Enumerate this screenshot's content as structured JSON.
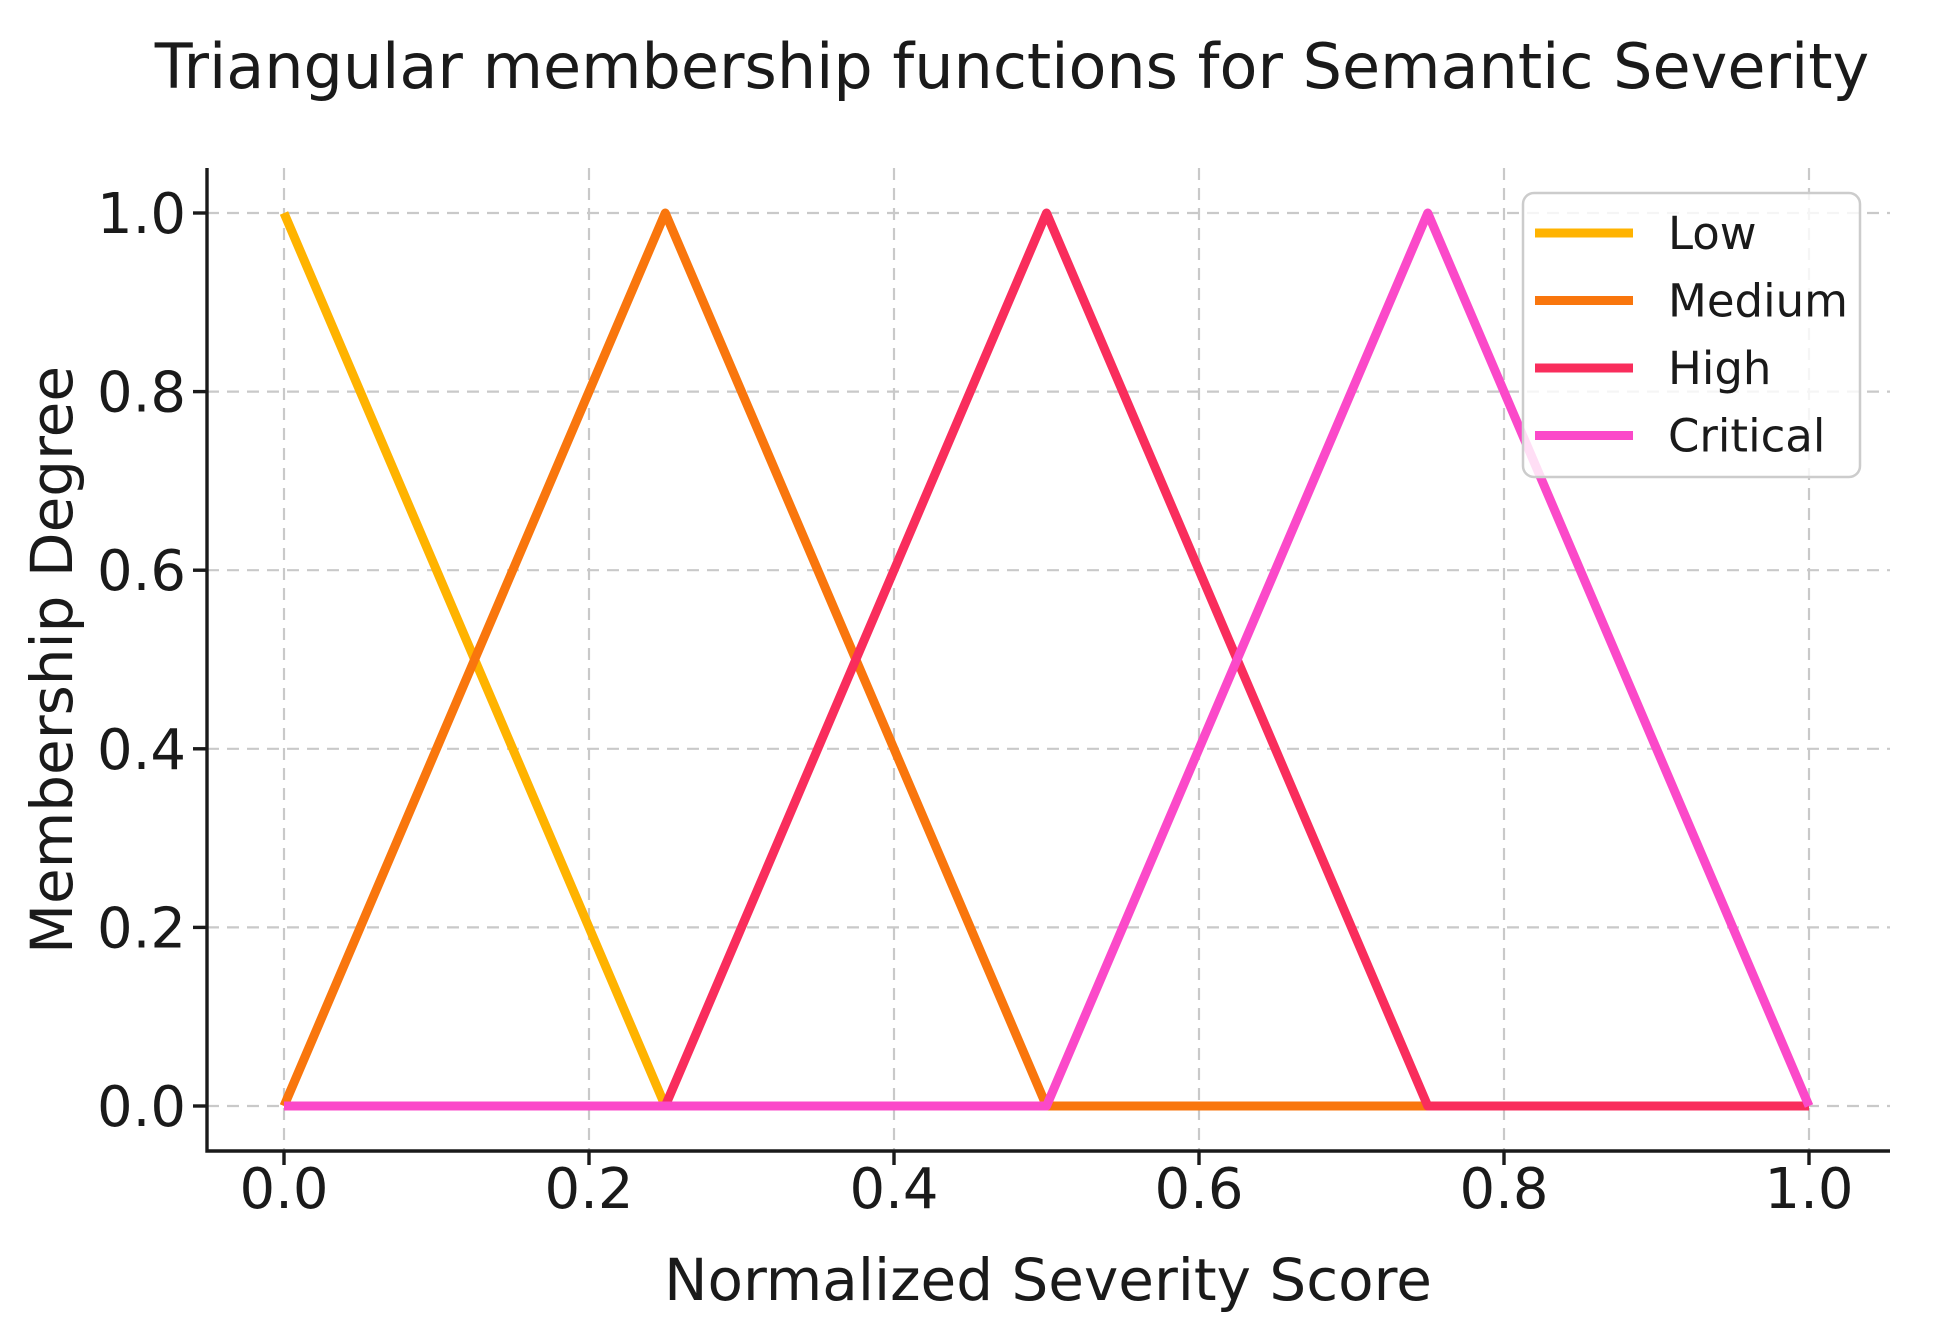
{
  "figure": {
    "background": "#ffffff",
    "text_color": "#1a1a1a",
    "grid_color": "#c9c9c9",
    "spine_color": "#1a1a1a",
    "legend_border_color": "#cccccc"
  },
  "chart_data": {
    "type": "line",
    "title": "Triangular membership functions for Semantic Severity",
    "xlabel": "Normalized Severity Score",
    "ylabel": "Membership Degree",
    "xlim": [
      -0.05,
      1.05
    ],
    "ylim": [
      -0.05,
      1.05
    ],
    "xticks": [
      0.0,
      0.2,
      0.4,
      0.6,
      0.8,
      1.0
    ],
    "yticks": [
      0.0,
      0.2,
      0.4,
      0.6,
      0.8,
      1.0
    ],
    "xtick_labels": [
      "0.0",
      "0.2",
      "0.4",
      "0.6",
      "0.8",
      "1.0"
    ],
    "ytick_labels": [
      "0.0",
      "0.2",
      "0.4",
      "0.6",
      "0.8",
      "1.0"
    ],
    "grid": true,
    "grid_style": "dashed",
    "legend_position": "upper right",
    "series": [
      {
        "name": "Low",
        "color": "#FFB300",
        "points": [
          [
            0.0,
            1.0
          ],
          [
            0.25,
            0.0
          ],
          [
            1.0,
            0.0
          ]
        ]
      },
      {
        "name": "Medium",
        "color": "#F9760D",
        "points": [
          [
            0.0,
            0.0
          ],
          [
            0.25,
            1.0
          ],
          [
            0.5,
            0.0
          ],
          [
            1.0,
            0.0
          ]
        ]
      },
      {
        "name": "High",
        "color": "#F92D5C",
        "points": [
          [
            0.0,
            0.0
          ],
          [
            0.25,
            0.0
          ],
          [
            0.5,
            1.0
          ],
          [
            0.75,
            0.0
          ],
          [
            1.0,
            0.0
          ]
        ]
      },
      {
        "name": "Critical",
        "color": "#FB49C9",
        "points": [
          [
            0.0,
            0.0
          ],
          [
            0.5,
            0.0
          ],
          [
            0.75,
            1.0
          ],
          [
            1.0,
            0.0
          ]
        ]
      }
    ]
  },
  "legend": {
    "entries": [
      "Low",
      "Medium",
      "High",
      "Critical"
    ]
  }
}
